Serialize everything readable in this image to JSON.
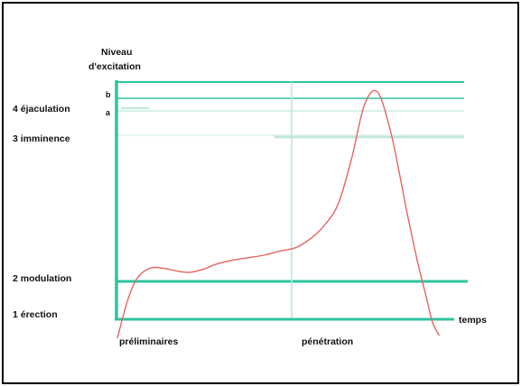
{
  "chart_data": {
    "type": "line",
    "ylabel_lines": [
      "Niveau",
      "d'excitation"
    ],
    "xlabel": "temps",
    "x_phase_labels": [
      "préliminaires",
      "pénétration"
    ],
    "y_levels": [
      {
        "label": "1 érection",
        "value": 0
      },
      {
        "label": "2 modulation",
        "value": 1
      },
      {
        "label": "3 imminence",
        "value": 3
      },
      {
        "label": "4 éjaculation",
        "value": 4
      }
    ],
    "marker_labels": [
      "b",
      "a"
    ],
    "ylim": [
      -0.4,
      4.5
    ],
    "xlim": [
      0,
      100
    ],
    "colors": {
      "axis": "#2ec4a0",
      "curve": "#e8645c",
      "guide": "#bfe6da"
    },
    "series": [
      {
        "x": [
          0,
          3,
          6,
          10,
          14,
          18,
          22,
          26,
          30,
          35,
          40,
          45,
          50,
          55,
          60,
          64,
          68,
          72,
          76,
          80,
          84,
          87,
          89,
          91,
          93,
          95,
          97,
          99
        ],
        "y": [
          -0.4,
          0.3,
          0.75,
          0.95,
          0.95,
          0.9,
          0.87,
          0.92,
          1.02,
          1.1,
          1.15,
          1.2,
          1.28,
          1.35,
          1.55,
          1.8,
          2.2,
          3.05,
          4.1,
          4.35,
          3.6,
          2.7,
          2.05,
          1.45,
          0.9,
          0.4,
          -0.1,
          -0.35
        ]
      }
    ]
  }
}
